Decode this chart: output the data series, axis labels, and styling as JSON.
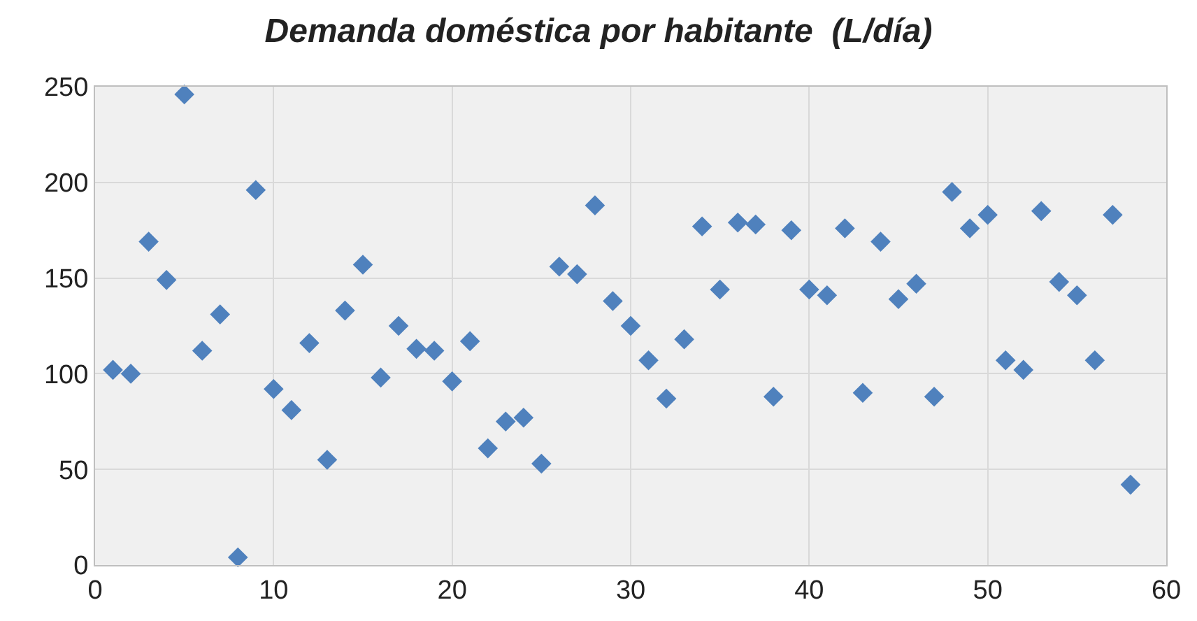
{
  "chart_data": {
    "type": "scatter",
    "title": "Demanda doméstica por habitante  (L/día)",
    "x": [
      1,
      2,
      3,
      4,
      5,
      6,
      7,
      8,
      9,
      10,
      11,
      12,
      13,
      14,
      15,
      16,
      17,
      18,
      19,
      20,
      21,
      22,
      23,
      24,
      25,
      26,
      27,
      28,
      29,
      30,
      31,
      32,
      33,
      34,
      35,
      36,
      37,
      38,
      39,
      40,
      41,
      42,
      43,
      44,
      45,
      46,
      47,
      48,
      49,
      50,
      51,
      52,
      53,
      54,
      55,
      56,
      57,
      58
    ],
    "values": [
      102,
      100,
      169,
      149,
      246,
      112,
      131,
      4,
      196,
      92,
      81,
      116,
      55,
      133,
      157,
      98,
      125,
      113,
      112,
      96,
      117,
      61,
      75,
      77,
      53,
      156,
      152,
      188,
      138,
      125,
      107,
      87,
      118,
      177,
      144,
      179,
      178,
      88,
      175,
      144,
      141,
      176,
      90,
      169,
      139,
      147,
      88,
      195,
      176,
      183,
      107,
      102,
      185,
      148,
      141,
      107,
      183,
      42
    ],
    "color": "#4f81bd",
    "marker": "diamond",
    "grid": true,
    "legend": false,
    "xlim": [
      0,
      60
    ],
    "xticks": [
      0,
      10,
      20,
      30,
      40,
      50,
      60
    ],
    "ylim": [
      0,
      250
    ],
    "yticks": [
      0,
      50,
      100,
      150,
      200,
      250
    ]
  }
}
